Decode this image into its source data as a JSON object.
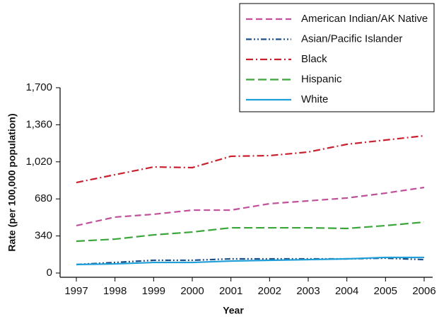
{
  "chart_data": {
    "type": "line",
    "x_label": "Year",
    "y_label": "Rate (per 100,000 population)",
    "categories": [
      "1997",
      "1998",
      "1999",
      "2000",
      "2001",
      "2002",
      "2003",
      "2004",
      "2005",
      "2006"
    ],
    "ylim": [
      0,
      1700
    ],
    "yticks": [
      0,
      340,
      680,
      {
        "value": 1020,
        "label": "1,020"
      },
      {
        "value": 1360,
        "label": "1,360"
      },
      {
        "value": 1700,
        "label": "1,700"
      }
    ],
    "legend": "upper right",
    "series": [
      {
        "name": "American Indian/AK Native",
        "color": "#c0509a",
        "dash": "9 5",
        "values": [
          435,
          513,
          539,
          577,
          577,
          636,
          662,
          688,
          733,
          785
        ]
      },
      {
        "name": "Asian/Pacific Islander",
        "color": "#1a4f8a",
        "dash": "8 3 2 3 2 3",
        "values": [
          78,
          97,
          117,
          117,
          130,
          130,
          130,
          130,
          136,
          123
        ]
      },
      {
        "name": "Black",
        "color": "#c8202f",
        "dash": "10 4 2 4",
        "values": [
          830,
          902,
          973,
          967,
          1071,
          1077,
          1110,
          1181,
          1220,
          1259
        ]
      },
      {
        "name": "Hispanic",
        "color": "#3aa63a",
        "dash": "12 5",
        "values": [
          292,
          311,
          350,
          376,
          415,
          415,
          415,
          409,
          435,
          467
        ]
      },
      {
        "name": "White",
        "color": "#1e9fd8",
        "dash": "none",
        "values": [
          78,
          84,
          97,
          97,
          110,
          117,
          123,
          130,
          143,
          143
        ]
      }
    ]
  }
}
